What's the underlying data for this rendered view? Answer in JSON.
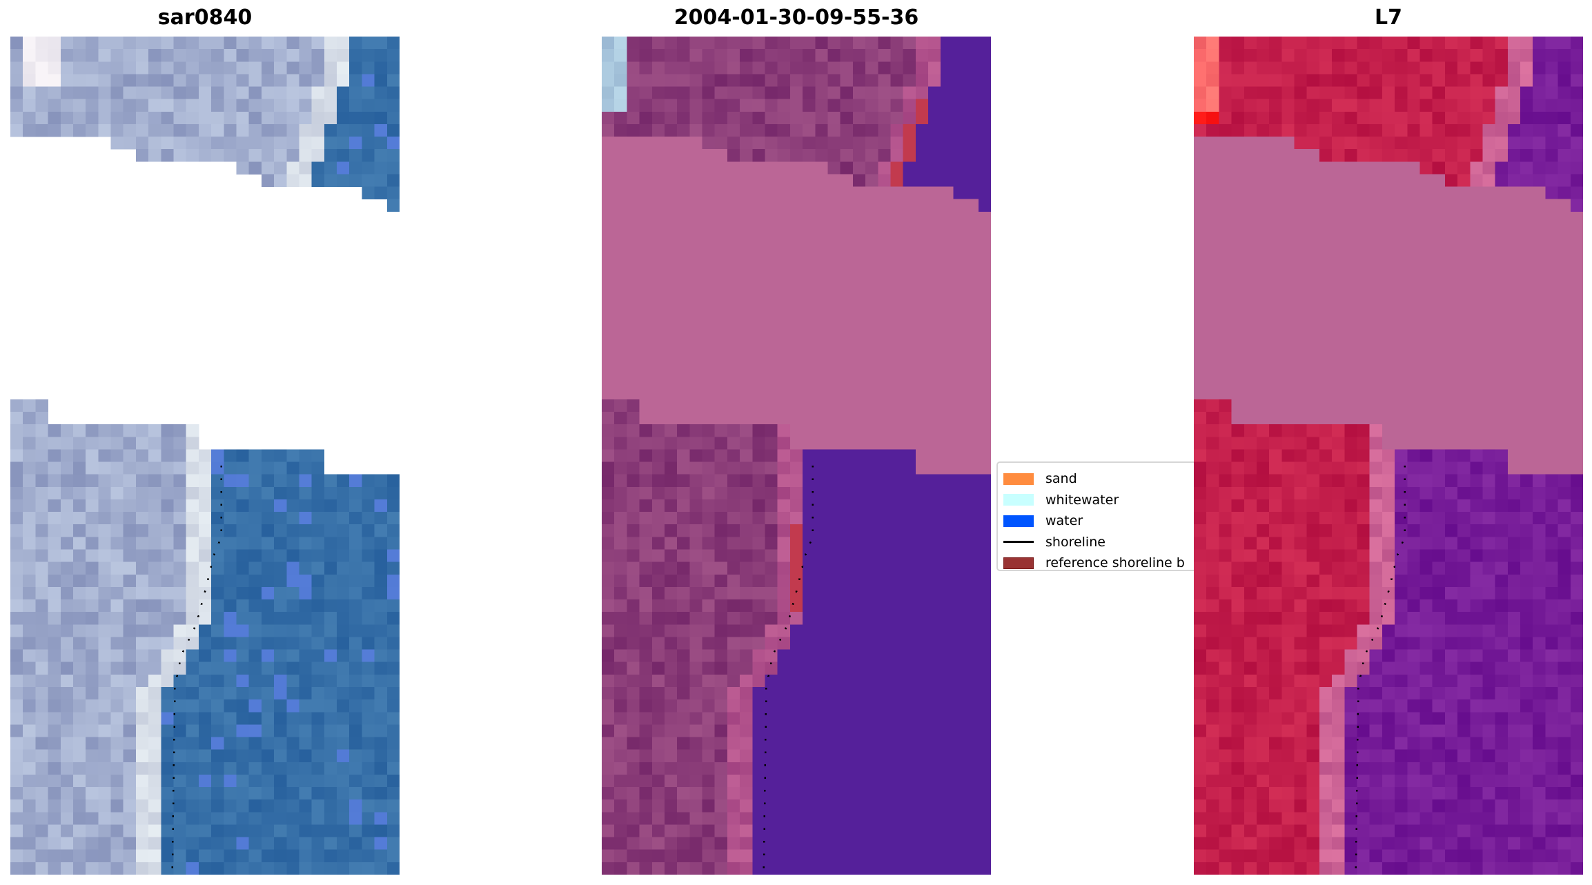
{
  "chart_data": [
    {
      "type": "heatmap",
      "title": "sar0840",
      "panel": "rgb"
    },
    {
      "type": "heatmap",
      "title": "2004-01-30-09-55-36",
      "panel": "classification"
    },
    {
      "type": "heatmap",
      "title": "L7",
      "panel": "index"
    }
  ],
  "legend": {
    "placement": "center",
    "items": [
      {
        "label": "sand",
        "kind": "patch",
        "color": "#ff8c3f"
      },
      {
        "label": "whitewater",
        "kind": "patch",
        "color": "#c8ffff"
      },
      {
        "label": "water",
        "kind": "patch",
        "color": "#0055ff"
      },
      {
        "label": "shoreline",
        "kind": "line",
        "color": "#000000"
      },
      {
        "label": "reference shoreline b",
        "kind": "patch",
        "color": "#993333"
      }
    ]
  },
  "colors": {
    "nodata_overlay": "#bb6696",
    "water_class": "#55209a"
  }
}
